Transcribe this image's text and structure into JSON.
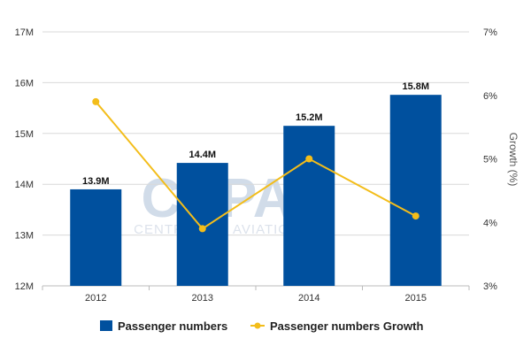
{
  "watermark": {
    "text": "CAPA",
    "subtext": "CENTRE FOR AVIATION"
  },
  "colors": {
    "bar": "#00509e",
    "line": "#f3bd1a",
    "grid": "#d9d9d9",
    "axis": "#bbbbbb"
  },
  "chart_data": {
    "type": "bar",
    "categories": [
      "2012",
      "2013",
      "2014",
      "2015"
    ],
    "series": [
      {
        "name": "Passenger numbers",
        "type": "bar",
        "axis": "left",
        "values": [
          13.9,
          14.42,
          15.15,
          15.76
        ],
        "data_labels": [
          "13.9M",
          "14.4M",
          "15.2M",
          "15.8M"
        ]
      },
      {
        "name": "Passenger numbers Growth",
        "type": "line",
        "axis": "right",
        "values": [
          5.9,
          3.9,
          5.0,
          4.1
        ]
      }
    ],
    "y_left": {
      "lim": [
        12,
        17
      ],
      "ticks": [
        12,
        13,
        14,
        15,
        16,
        17
      ],
      "tick_labels": [
        "12M",
        "13M",
        "14M",
        "15M",
        "16M",
        "17M"
      ],
      "label": ""
    },
    "y_right": {
      "lim": [
        3,
        7
      ],
      "ticks": [
        3,
        4,
        5,
        6,
        7
      ],
      "tick_labels": [
        "3%",
        "4%",
        "5%",
        "6%",
        "7%"
      ],
      "label": "Growth (%)"
    },
    "xlabel": "",
    "grid": true,
    "legend_position": "bottom"
  }
}
